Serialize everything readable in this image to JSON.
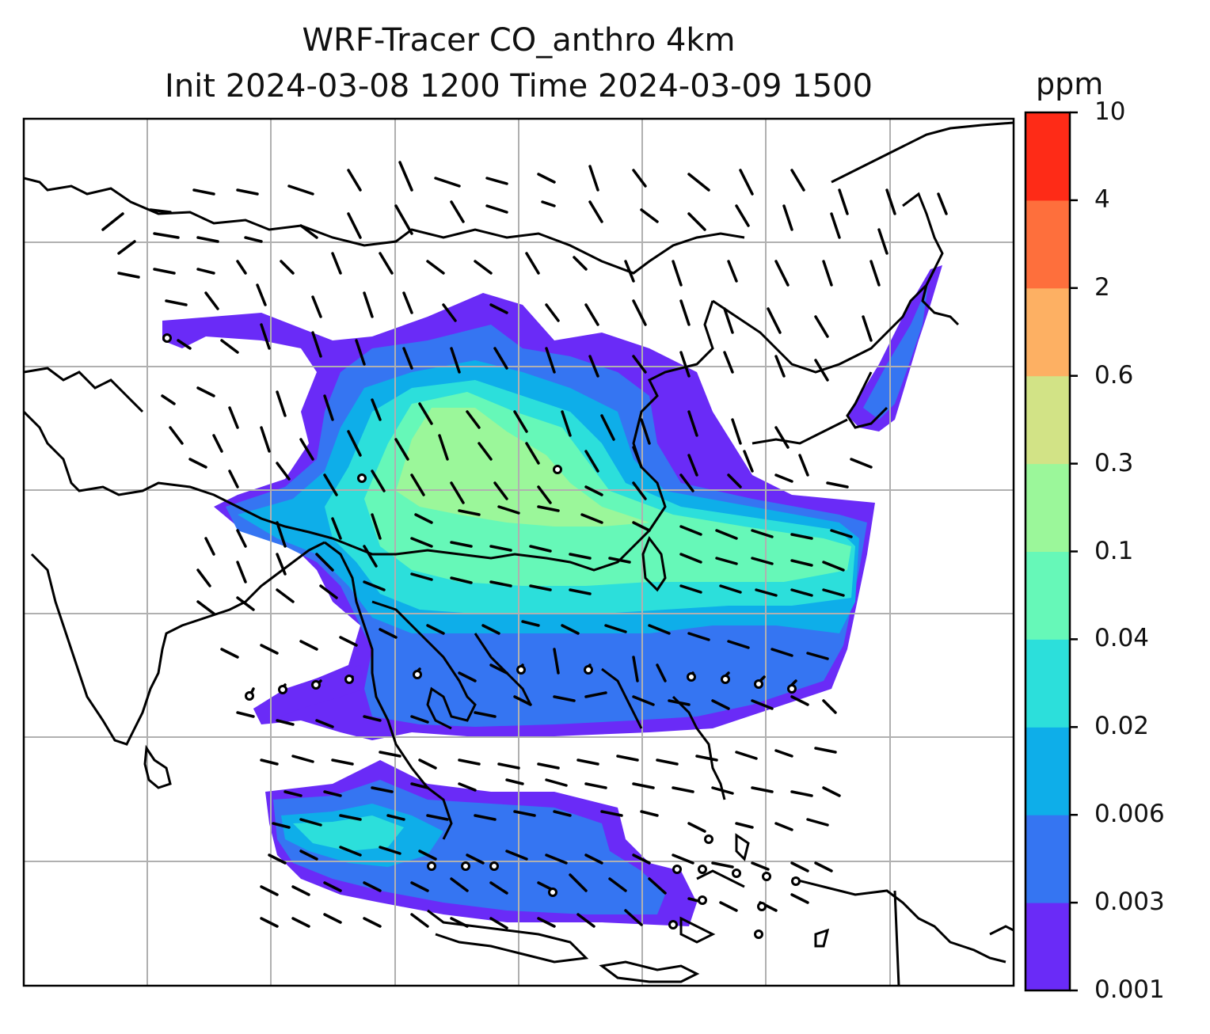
{
  "title": {
    "line1": "WRF-Tracer CO_anthro 4km",
    "line2": "Init 2024-03-08 1200 Time 2024-03-09 1500"
  },
  "colorbar": {
    "unit": "ppm",
    "ticks": [
      "0.001",
      "0.003",
      "0.006",
      "0.02",
      "0.04",
      "0.1",
      "0.3",
      "0.6",
      "2",
      "4",
      "10"
    ],
    "colors": [
      "#6a2bf7",
      "#3575f2",
      "#0eaee9",
      "#2cdfdb",
      "#66f8b8",
      "#9bf79a",
      "#d2e386",
      "#fdb063",
      "#fe6f3c",
      "#fe2b17"
    ]
  },
  "map": {
    "gridlines": true,
    "wind_barbs": true,
    "coastlines": true
  }
}
